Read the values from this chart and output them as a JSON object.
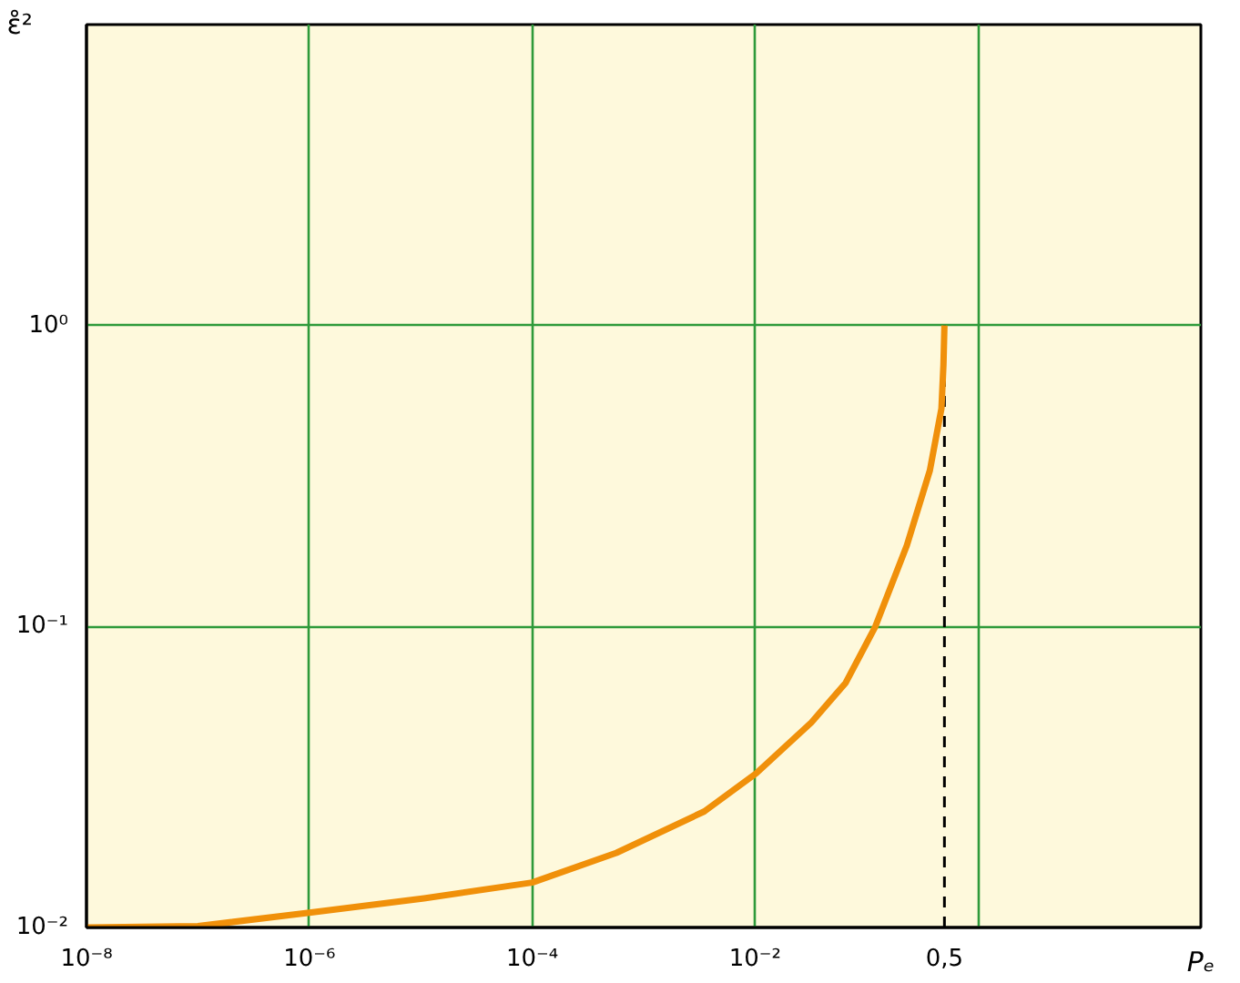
{
  "chart_data": {
    "type": "line",
    "xlabel": "Pₑ",
    "ylabel": "ε̊²",
    "log": "xy",
    "grid": true,
    "line_style": "solid",
    "marker": "none",
    "xlim": [
      1e-08,
      100
    ],
    "ylim": [
      0.01,
      10
    ],
    "xticks": [
      {
        "value": 1e-08,
        "label": "10⁻⁸"
      },
      {
        "value": 1e-06,
        "label": "10⁻⁶"
      },
      {
        "value": 0.0001,
        "label": "10⁻⁴"
      },
      {
        "value": 0.01,
        "label": "10⁻²"
      },
      {
        "value": 0.5,
        "label": "0,5"
      },
      {
        "value": 1,
        "label": null
      }
    ],
    "yticks": [
      {
        "value": 0.01,
        "label": "10⁻²"
      },
      {
        "value": 0.1,
        "label": "10⁻¹"
      },
      {
        "value": 1,
        "label": "10⁰"
      },
      {
        "value": 10,
        "label": null
      }
    ],
    "ref_lines": [
      {
        "axis": "x",
        "value": 0.5,
        "color": "#000000",
        "line_style": "dashed"
      }
    ],
    "series": [
      {
        "color": "#f0900a",
        "x": [
          1e-08,
          1e-07,
          1e-06,
          1.07e-05,
          0.0001,
          0.00057,
          0.0035,
          0.0102,
          0.032,
          0.065,
          0.12,
          0.23,
          0.37,
          0.47,
          0.49,
          0.5
        ],
        "values": [
          0.01,
          0.0101,
          0.0112,
          0.0125,
          0.0141,
          0.0177,
          0.0243,
          0.0325,
          0.048,
          0.065,
          0.1,
          0.186,
          0.33,
          0.53,
          0.74,
          1.0
        ]
      }
    ]
  }
}
